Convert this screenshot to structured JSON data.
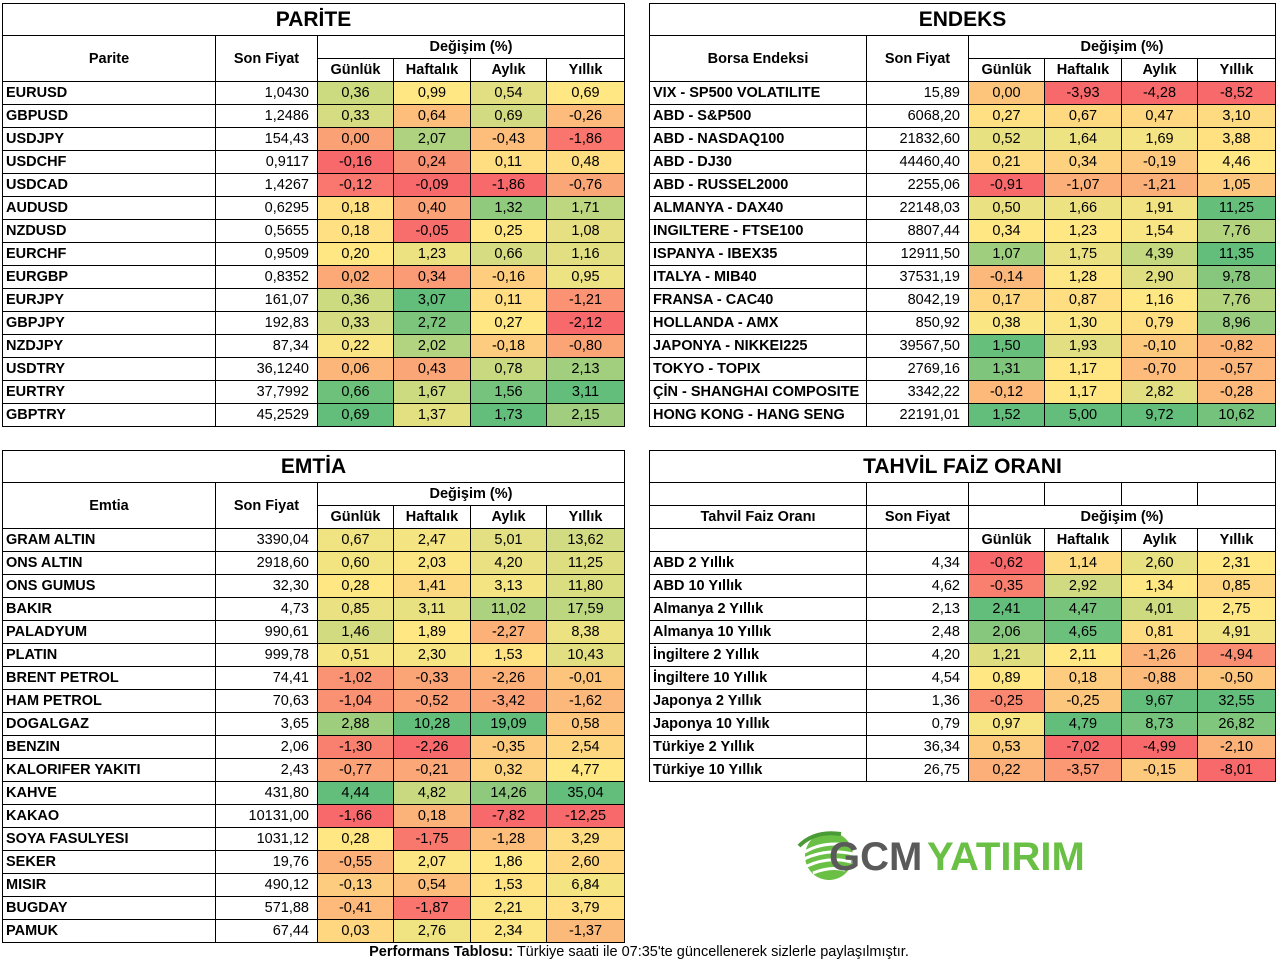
{
  "parite": {
    "title": "PARİTE",
    "name_header": "Parite",
    "price_header": "Son Fiyat",
    "change_header": "Değişim (%)",
    "col_headers": [
      "Günlük",
      "Haftalık",
      "Aylık",
      "Yıllık"
    ],
    "rows": [
      {
        "name": "EURUSD",
        "price": "1,0430",
        "values": [
          "0,36",
          "0,99",
          "0,54",
          "0,69"
        ]
      },
      {
        "name": "GBPUSD",
        "price": "1,2486",
        "values": [
          "0,33",
          "0,64",
          "0,69",
          "-0,26"
        ]
      },
      {
        "name": "USDJPY",
        "price": "154,43",
        "values": [
          "0,00",
          "2,07",
          "-0,43",
          "-1,86"
        ]
      },
      {
        "name": "USDCHF",
        "price": "0,9117",
        "values": [
          "-0,16",
          "0,24",
          "0,11",
          "0,48"
        ]
      },
      {
        "name": "USDCAD",
        "price": "1,4267",
        "values": [
          "-0,12",
          "-0,09",
          "-1,86",
          "-0,76"
        ]
      },
      {
        "name": "AUDUSD",
        "price": "0,6295",
        "values": [
          "0,18",
          "0,40",
          "1,32",
          "1,71"
        ]
      },
      {
        "name": "NZDUSD",
        "price": "0,5655",
        "values": [
          "0,18",
          "-0,05",
          "0,25",
          "1,08"
        ]
      },
      {
        "name": "EURCHF",
        "price": "0,9509",
        "values": [
          "0,20",
          "1,23",
          "0,66",
          "1,16"
        ]
      },
      {
        "name": "EURGBP",
        "price": "0,8352",
        "values": [
          "0,02",
          "0,34",
          "-0,16",
          "0,95"
        ]
      },
      {
        "name": "EURJPY",
        "price": "161,07",
        "values": [
          "0,36",
          "3,07",
          "0,11",
          "-1,21"
        ]
      },
      {
        "name": "GBPJPY",
        "price": "192,83",
        "values": [
          "0,33",
          "2,72",
          "0,27",
          "-2,12"
        ]
      },
      {
        "name": "NZDJPY",
        "price": "87,34",
        "values": [
          "0,22",
          "2,02",
          "-0,18",
          "-0,80"
        ]
      },
      {
        "name": "USDTRY",
        "price": "36,1240",
        "values": [
          "0,06",
          "0,43",
          "0,78",
          "2,13"
        ]
      },
      {
        "name": "EURTRY",
        "price": "37,7992",
        "values": [
          "0,66",
          "1,67",
          "1,56",
          "3,11"
        ]
      },
      {
        "name": "GBPTRY",
        "price": "45,2529",
        "values": [
          "0,69",
          "1,37",
          "1,73",
          "2,15"
        ]
      }
    ]
  },
  "endeks": {
    "title": "ENDEKS",
    "name_header": "Borsa Endeksi",
    "price_header": "Son Fiyat",
    "change_header": "Değişim (%)",
    "col_headers": [
      "Günlük",
      "Haftalık",
      "Aylık",
      "Yıllık"
    ],
    "rows": [
      {
        "name": "VIX  - SP500 VOLATILITE",
        "price": "15,89",
        "values": [
          "0,00",
          "-3,93",
          "-4,28",
          "-8,52"
        ]
      },
      {
        "name": "ABD - S&P500",
        "price": "6068,20",
        "values": [
          "0,27",
          "0,67",
          "0,47",
          "3,10"
        ]
      },
      {
        "name": "ABD - NASDAQ100",
        "price": "21832,60",
        "values": [
          "0,52",
          "1,64",
          "1,69",
          "3,88"
        ]
      },
      {
        "name": "ABD - DJ30",
        "price": "44460,40",
        "values": [
          "0,21",
          "0,34",
          "-0,19",
          "4,46"
        ]
      },
      {
        "name": "ABD - RUSSEL2000",
        "price": "2255,06",
        "values": [
          "-0,91",
          "-1,07",
          "-1,21",
          "1,05"
        ]
      },
      {
        "name": "ALMANYA - DAX40",
        "price": "22148,03",
        "values": [
          "0,50",
          "1,66",
          "1,91",
          "11,25"
        ]
      },
      {
        "name": "INGILTERE - FTSE100",
        "price": "8807,44",
        "values": [
          "0,34",
          "1,23",
          "1,54",
          "7,76"
        ]
      },
      {
        "name": "ISPANYA - IBEX35",
        "price": "12911,50",
        "values": [
          "1,07",
          "1,75",
          "4,39",
          "11,35"
        ]
      },
      {
        "name": "ITALYA - MIB40",
        "price": "37531,19",
        "values": [
          "-0,14",
          "1,28",
          "2,90",
          "9,78"
        ]
      },
      {
        "name": "FRANSA - CAC40",
        "price": "8042,19",
        "values": [
          "0,17",
          "0,87",
          "1,16",
          "7,76"
        ]
      },
      {
        "name": "HOLLANDA - AMX",
        "price": "850,92",
        "values": [
          "0,38",
          "1,30",
          "0,79",
          "8,96"
        ]
      },
      {
        "name": "JAPONYA - NIKKEI225",
        "price": "39567,50",
        "values": [
          "1,50",
          "1,93",
          "-0,10",
          "-0,82"
        ]
      },
      {
        "name": "TOKYO - TOPIX",
        "price": "2769,16",
        "values": [
          "1,31",
          "1,17",
          "-0,70",
          "-0,57"
        ]
      },
      {
        "name": "ÇİN - SHANGHAI COMPOSITE",
        "price": "3342,22",
        "values": [
          "-0,12",
          "1,17",
          "2,82",
          "-0,28"
        ]
      },
      {
        "name": "HONG KONG - HANG SENG",
        "price": "22191,01",
        "values": [
          "1,52",
          "5,00",
          "9,72",
          "10,62"
        ]
      }
    ]
  },
  "emtia": {
    "title": "EMTİA",
    "name_header": "Emtia",
    "price_header": "Son Fiyat",
    "change_header": "Değişim (%)",
    "col_headers": [
      "Günlük",
      "Haftalık",
      "Aylık",
      "Yıllık"
    ],
    "rows": [
      {
        "name": "GRAM ALTIN",
        "price": "3390,04",
        "values": [
          "0,67",
          "2,47",
          "5,01",
          "13,62"
        ]
      },
      {
        "name": "ONS ALTIN",
        "price": "2918,60",
        "values": [
          "0,60",
          "2,03",
          "4,20",
          "11,25"
        ]
      },
      {
        "name": "ONS GUMUS",
        "price": "32,30",
        "values": [
          "0,28",
          "1,41",
          "3,13",
          "11,80"
        ]
      },
      {
        "name": "BAKIR",
        "price": "4,73",
        "values": [
          "0,85",
          "3,11",
          "11,02",
          "17,59"
        ]
      },
      {
        "name": "PALADYUM",
        "price": "990,61",
        "values": [
          "1,46",
          "1,89",
          "-2,27",
          "8,38"
        ]
      },
      {
        "name": "PLATIN",
        "price": "999,78",
        "values": [
          "0,51",
          "2,30",
          "1,53",
          "10,43"
        ]
      },
      {
        "name": "BRENT PETROL",
        "price": "74,41",
        "values": [
          "-1,02",
          "-0,33",
          "-2,26",
          "-0,01"
        ]
      },
      {
        "name": "HAM PETROL",
        "price": "70,63",
        "values": [
          "-1,04",
          "-0,52",
          "-3,42",
          "-1,62"
        ]
      },
      {
        "name": "DOGALGAZ",
        "price": "3,65",
        "values": [
          "2,88",
          "10,28",
          "19,09",
          "0,58"
        ]
      },
      {
        "name": "BENZIN",
        "price": "2,06",
        "values": [
          "-1,30",
          "-2,26",
          "-0,35",
          "2,54"
        ]
      },
      {
        "name": "KALORIFER YAKITI",
        "price": "2,43",
        "values": [
          "-0,77",
          "-0,21",
          "0,32",
          "4,77"
        ]
      },
      {
        "name": "KAHVE",
        "price": "431,80",
        "values": [
          "4,44",
          "4,82",
          "14,26",
          "35,04"
        ]
      },
      {
        "name": "KAKAO",
        "price": "10131,00",
        "values": [
          "-1,66",
          "0,18",
          "-7,82",
          "-12,25"
        ]
      },
      {
        "name": "SOYA FASULYESI",
        "price": "1031,12",
        "values": [
          "0,28",
          "-1,75",
          "-1,28",
          "3,29"
        ]
      },
      {
        "name": "SEKER",
        "price": "19,76",
        "values": [
          "-0,55",
          "2,07",
          "1,86",
          "2,60"
        ]
      },
      {
        "name": "MISIR",
        "price": "490,12",
        "values": [
          "-0,13",
          "0,54",
          "1,53",
          "6,84"
        ]
      },
      {
        "name": "BUGDAY",
        "price": "571,88",
        "values": [
          "-0,41",
          "-1,87",
          "2,21",
          "3,79"
        ]
      },
      {
        "name": "PAMUK",
        "price": "67,44",
        "values": [
          "0,03",
          "2,76",
          "2,34",
          "-1,37"
        ]
      }
    ]
  },
  "tahvil": {
    "title": "TAHVİL FAİZ ORANI",
    "name_header": "Tahvil Faiz Oranı",
    "price_header": "Son Fiyat",
    "change_header": "Değişim (%)",
    "col_headers": [
      "Günlük",
      "Haftalık",
      "Aylık",
      "Yıllık"
    ],
    "rows": [
      {
        "name": "ABD 2 Yıllık",
        "price": "4,34",
        "values": [
          "-0,62",
          "1,14",
          "2,60",
          "2,31"
        ]
      },
      {
        "name": "ABD 10 Yıllık",
        "price": "4,62",
        "values": [
          "-0,35",
          "2,92",
          "1,34",
          "0,85"
        ]
      },
      {
        "name": "Almanya 2 Yıllık",
        "price": "2,13",
        "values": [
          "2,41",
          "4,47",
          "4,01",
          "2,75"
        ]
      },
      {
        "name": "Almanya 10 Yıllık",
        "price": "2,48",
        "values": [
          "2,06",
          "4,65",
          "0,81",
          "4,91"
        ]
      },
      {
        "name": "İngiltere 2 Yıllık",
        "price": "4,20",
        "values": [
          "1,21",
          "2,11",
          "-1,26",
          "-4,94"
        ]
      },
      {
        "name": "İngiltere 10 Yıllık",
        "price": "4,54",
        "values": [
          "0,89",
          "0,18",
          "-0,88",
          "-0,50"
        ]
      },
      {
        "name": "Japonya 2 Yıllık",
        "price": "1,36",
        "values": [
          "-0,25",
          "-0,25",
          "9,67",
          "32,55"
        ]
      },
      {
        "name": "Japonya 10 Yıllık",
        "price": "0,79",
        "values": [
          "0,97",
          "4,79",
          "8,73",
          "26,82"
        ]
      },
      {
        "name": "Türkiye 2 Yıllık",
        "price": "36,34",
        "values": [
          "0,53",
          "-7,02",
          "-4,99",
          "-2,10"
        ]
      },
      {
        "name": "Türkiye 10 Yıllık",
        "price": "26,75",
        "values": [
          "0,22",
          "-3,57",
          "-0,15",
          "-8,01"
        ]
      }
    ]
  },
  "logo": {
    "text_gcm": "GCM",
    "text_yatirim": "YATIRIM",
    "gcm_color": "#5a5a5a",
    "yatirim_color": "#6abf45",
    "icon": "globe-swoosh-icon"
  },
  "footer": {
    "bold": "Performans Tablosu:",
    "text": " Türkiye saati ile 07:35'te güncellenerek sizlerle paylaşılmıştır."
  },
  "colors": {
    "red": "#f8696b",
    "orange": "#fba475",
    "yellow": "#ffe783",
    "light_green": "#d3df82",
    "green": "#63be7b"
  }
}
